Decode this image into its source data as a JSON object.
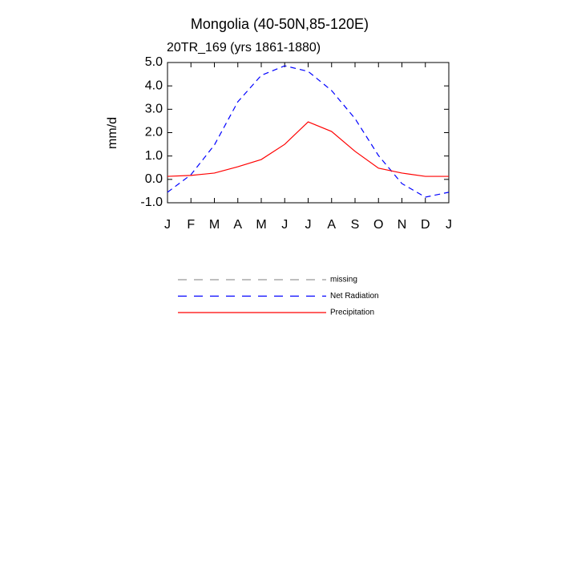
{
  "chart_data": {
    "type": "line",
    "title": "Mongolia (40-50N,85-120E)",
    "subtitle": "20TR_169 (yrs 1861-1880)",
    "y_label": "mm/d",
    "categories": [
      "J",
      "F",
      "M",
      "A",
      "M",
      "J",
      "J",
      "A",
      "S",
      "O",
      "N",
      "D",
      "J"
    ],
    "ylim": [
      -1.0,
      5.0
    ],
    "yticks": [
      {
        "value": -1.0,
        "label": "-1.0"
      },
      {
        "value": 0.0,
        "label": "0.0"
      },
      {
        "value": 1.0,
        "label": "1.0"
      },
      {
        "value": 2.0,
        "label": "2.0"
      },
      {
        "value": 3.0,
        "label": "3.0"
      },
      {
        "value": 4.0,
        "label": "4.0"
      },
      {
        "value": 5.0,
        "label": "5.0"
      }
    ],
    "series": [
      {
        "name": "missing",
        "color": "#999999",
        "dash": true,
        "values": [
          null,
          null,
          null,
          null,
          null,
          null,
          null,
          null,
          null,
          null,
          null,
          null,
          null
        ]
      },
      {
        "name": "Net Radiation",
        "color": "#0000ff",
        "dash": true,
        "values": [
          -0.55,
          0.2,
          1.47,
          3.32,
          4.45,
          4.86,
          4.62,
          3.8,
          2.6,
          1.02,
          -0.18,
          -0.76,
          -0.55
        ]
      },
      {
        "name": "Precipitation",
        "color": "#ff0000",
        "dash": false,
        "values": [
          0.13,
          0.17,
          0.27,
          0.54,
          0.85,
          1.5,
          2.46,
          2.05,
          1.2,
          0.48,
          0.27,
          0.13,
          0.13
        ]
      }
    ]
  }
}
